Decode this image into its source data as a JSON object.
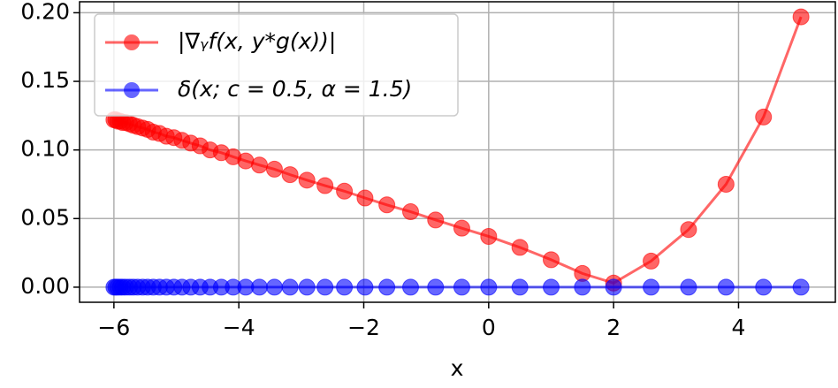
{
  "chart_data": {
    "type": "line",
    "xlabel": "x",
    "x": [
      -6.0,
      -5.97,
      -5.94,
      -5.9,
      -5.86,
      -5.81,
      -5.75,
      -5.69,
      -5.62,
      -5.54,
      -5.46,
      -5.37,
      -5.27,
      -5.16,
      -5.04,
      -4.91,
      -4.77,
      -4.62,
      -4.46,
      -4.28,
      -4.09,
      -3.89,
      -3.67,
      -3.43,
      -3.18,
      -2.91,
      -2.62,
      -2.31,
      -1.98,
      -1.63,
      -1.25,
      -0.85,
      -0.43,
      0,
      0.5,
      1.0,
      1.5,
      2.0,
      2.6,
      3.2,
      3.8,
      4.4,
      5.0
    ],
    "series": [
      {
        "name": "|∇ᵧf(x, y*g(x))|",
        "color": "#ff0000",
        "values": [
          0.122,
          0.122,
          0.121,
          0.121,
          0.12,
          0.12,
          0.119,
          0.118,
          0.117,
          0.116,
          0.115,
          0.113,
          0.112,
          0.11,
          0.109,
          0.107,
          0.105,
          0.103,
          0.1,
          0.098,
          0.095,
          0.092,
          0.089,
          0.086,
          0.082,
          0.078,
          0.074,
          0.07,
          0.065,
          0.06,
          0.055,
          0.049,
          0.043,
          0.037,
          0.029,
          0.02,
          0.01,
          0.003,
          0.019,
          0.042,
          0.075,
          0.124,
          0.197
        ]
      },
      {
        "name": "δ(x; c = 0.5, α = 1.5)",
        "color": "#0000ff",
        "values": [
          0,
          0,
          0,
          0,
          0,
          0,
          0,
          0,
          0,
          0,
          0,
          0,
          0,
          0,
          0,
          0,
          0,
          0,
          0,
          0,
          0,
          0,
          0,
          0,
          0,
          0,
          0,
          0,
          0,
          0,
          0,
          0,
          0,
          0,
          0,
          0,
          0,
          0,
          0,
          0,
          0,
          0,
          0
        ]
      }
    ],
    "xlim": [
      -6.55,
      5.55
    ],
    "ylim": [
      -0.011,
      0.208
    ],
    "xticks": [
      {
        "value": -6,
        "label": "−6"
      },
      {
        "value": -4,
        "label": "−4"
      },
      {
        "value": -2,
        "label": "−2"
      },
      0,
      2,
      4
    ],
    "yticks": [
      {
        "value": 0,
        "label": "0.00"
      },
      {
        "value": 0.05,
        "label": "0.05"
      },
      {
        "value": 0.1,
        "label": "0.10"
      },
      {
        "value": 0.15,
        "label": "0.15"
      },
      {
        "value": 0.2,
        "label": "0.20"
      }
    ],
    "grid": true,
    "legend": "upper left"
  }
}
